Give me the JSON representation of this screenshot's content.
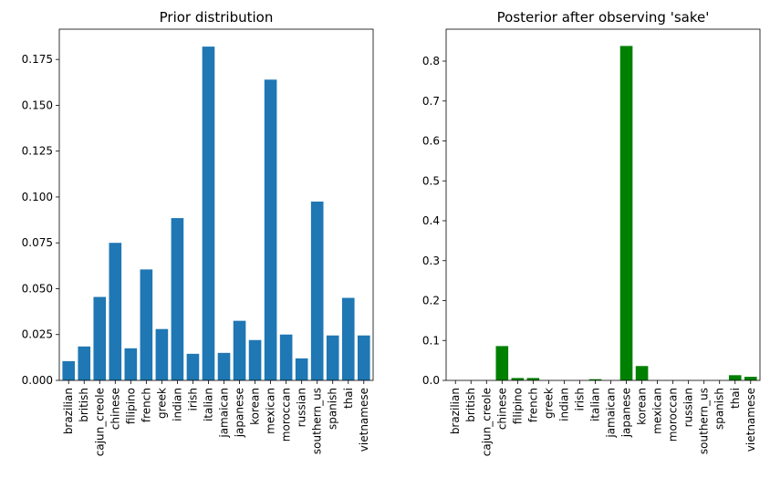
{
  "chart_data": [
    {
      "type": "bar",
      "title": "Prior distribution",
      "xlabel": "",
      "ylabel": "",
      "color": "#1f77b4",
      "categories": [
        "brazilian",
        "british",
        "cajun_creole",
        "chinese",
        "filipino",
        "french",
        "greek",
        "indian",
        "irish",
        "italian",
        "jamaican",
        "japanese",
        "korean",
        "mexican",
        "moroccan",
        "russian",
        "southern_us",
        "spanish",
        "thai",
        "vietnamese"
      ],
      "values": [
        0.0105,
        0.0185,
        0.0455,
        0.075,
        0.0175,
        0.0605,
        0.028,
        0.0885,
        0.0145,
        0.182,
        0.015,
        0.0325,
        0.022,
        0.164,
        0.025,
        0.012,
        0.0975,
        0.0245,
        0.045,
        0.0245
      ],
      "ylim": [
        0,
        0.1915
      ],
      "yticks": [
        0.0,
        0.025,
        0.05,
        0.075,
        0.1,
        0.125,
        0.15,
        0.175
      ],
      "ytick_labels": [
        "0.000",
        "0.025",
        "0.050",
        "0.075",
        "0.100",
        "0.125",
        "0.150",
        "0.175"
      ],
      "grid": false,
      "legend": "none"
    },
    {
      "type": "bar",
      "title": "Posterior after observing 'sake'",
      "xlabel": "",
      "ylabel": "",
      "color": "#008000",
      "categories": [
        "brazilian",
        "british",
        "cajun_creole",
        "chinese",
        "filipino",
        "french",
        "greek",
        "indian",
        "irish",
        "italian",
        "jamaican",
        "japanese",
        "korean",
        "mexican",
        "moroccan",
        "russian",
        "southern_us",
        "spanish",
        "thai",
        "vietnamese"
      ],
      "values": [
        0.0,
        0.0,
        0.0,
        0.086,
        0.006,
        0.006,
        0.0,
        0.0,
        0.0,
        0.003,
        0.0,
        0.838,
        0.036,
        0.0,
        0.0,
        0.0,
        0.0,
        0.0,
        0.013,
        0.009
      ],
      "ylim": [
        0,
        0.88
      ],
      "yticks": [
        0.0,
        0.1,
        0.2,
        0.3,
        0.4,
        0.5,
        0.6,
        0.7,
        0.8
      ],
      "ytick_labels": [
        "0.0",
        "0.1",
        "0.2",
        "0.3",
        "0.4",
        "0.5",
        "0.6",
        "0.7",
        "0.8"
      ],
      "grid": false,
      "legend": "none"
    }
  ]
}
